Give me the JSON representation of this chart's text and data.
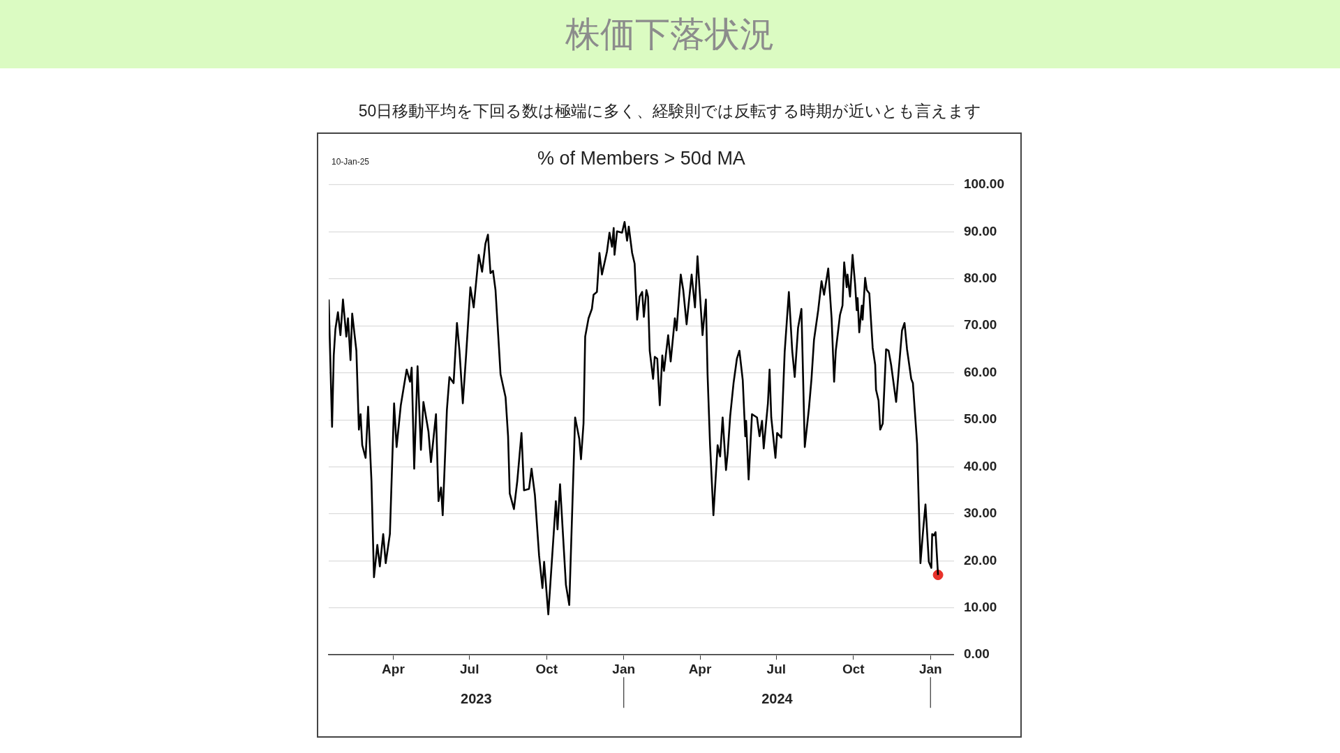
{
  "chart_data": {
    "type": "line",
    "title": "株価下落状況",
    "subtitle": "50日移動平均を下回る数は極端に多く、経験則では反転する時期が近いとも言えます",
    "annotations": [
      "% of Members > 50d MA",
      "10-Jan-25",
      "2023",
      "2024"
    ],
    "xlim": [
      "2023-01-14",
      "2025-01-29"
    ],
    "xticks": [
      {
        "value": "2023-04-01",
        "label": "Apr"
      },
      {
        "value": "2023-07-01",
        "label": "Jul"
      },
      {
        "value": "2023-10-01",
        "label": "Oct"
      },
      {
        "value": "2024-01-01",
        "label": "Jan"
      },
      {
        "value": "2024-04-01",
        "label": "Apr"
      },
      {
        "value": "2024-07-01",
        "label": "Jul"
      },
      {
        "value": "2024-10-01",
        "label": "Oct"
      },
      {
        "value": "2025-01-01",
        "label": "Jan"
      }
    ],
    "ylim": [
      0,
      100
    ],
    "yticks": [
      {
        "value": 0,
        "label": "0.00"
      },
      {
        "value": 10,
        "label": "10.00"
      },
      {
        "value": 20,
        "label": "20.00"
      },
      {
        "value": 30,
        "label": "30.00"
      },
      {
        "value": 40,
        "label": "40.00"
      },
      {
        "value": 50,
        "label": "50.00"
      },
      {
        "value": 60,
        "label": "60.00"
      },
      {
        "value": 70,
        "label": "70.00"
      },
      {
        "value": 80,
        "label": "80.00"
      },
      {
        "value": 90,
        "label": "90.00"
      },
      {
        "value": 100,
        "label": "100.00"
      }
    ],
    "grid": "y",
    "series": [
      {
        "color": "#000000",
        "x": [
          "2023-01-14",
          "2023-01-18",
          "2023-01-20",
          "2023-01-22",
          "2023-01-25",
          "2023-01-28",
          "2023-01-31",
          "2023-02-04",
          "2023-02-06",
          "2023-02-09",
          "2023-02-11",
          "2023-02-16",
          "2023-02-19",
          "2023-02-21",
          "2023-02-23",
          "2023-02-27",
          "2023-03-02",
          "2023-03-06",
          "2023-03-09",
          "2023-03-13",
          "2023-03-16",
          "2023-03-20",
          "2023-03-23",
          "2023-03-28",
          "2023-04-02",
          "2023-04-05",
          "2023-04-10",
          "2023-04-17",
          "2023-04-21",
          "2023-04-23",
          "2023-04-26",
          "2023-04-30",
          "2023-05-04",
          "2023-05-07",
          "2023-05-13",
          "2023-05-16",
          "2023-05-22",
          "2023-05-25",
          "2023-05-28",
          "2023-05-30",
          "2023-06-04",
          "2023-06-07",
          "2023-06-12",
          "2023-06-16",
          "2023-06-19",
          "2023-06-23",
          "2023-06-27",
          "2023-07-02",
          "2023-07-06",
          "2023-07-12",
          "2023-07-16",
          "2023-07-20",
          "2023-07-23",
          "2023-07-26",
          "2023-07-29",
          "2023-08-01",
          "2023-08-05",
          "2023-08-07",
          "2023-08-13",
          "2023-08-16",
          "2023-08-18",
          "2023-08-23",
          "2023-08-27",
          "2023-09-01",
          "2023-09-04",
          "2023-09-10",
          "2023-09-13",
          "2023-09-17",
          "2023-09-22",
          "2023-09-26",
          "2023-09-28",
          "2023-10-03",
          "2023-10-12",
          "2023-10-14",
          "2023-10-17",
          "2023-10-24",
          "2023-10-28",
          "2023-11-04",
          "2023-11-09",
          "2023-11-11",
          "2023-11-14",
          "2023-11-16",
          "2023-11-20",
          "2023-11-24",
          "2023-11-26",
          "2023-11-30",
          "2023-12-03",
          "2023-12-06",
          "2023-12-12",
          "2023-12-15",
          "2023-12-18",
          "2023-12-20",
          "2023-12-21",
          "2023-12-24",
          "2023-12-30",
          "2024-01-02",
          "2024-01-05",
          "2024-01-07",
          "2024-01-11",
          "2024-01-14",
          "2024-01-17",
          "2024-01-20",
          "2024-01-23",
          "2024-01-25",
          "2024-01-28",
          "2024-01-30",
          "2024-02-01",
          "2024-02-05",
          "2024-02-07",
          "2024-02-10",
          "2024-02-13",
          "2024-02-16",
          "2024-02-18",
          "2024-02-23",
          "2024-02-26",
          "2024-03-02",
          "2024-03-04",
          "2024-03-09",
          "2024-03-12",
          "2024-03-16",
          "2024-03-22",
          "2024-03-26",
          "2024-03-29",
          "2024-04-04",
          "2024-04-08",
          "2024-04-10",
          "2024-04-13",
          "2024-04-17",
          "2024-04-22",
          "2024-04-25",
          "2024-04-28",
          "2024-05-02",
          "2024-05-04",
          "2024-05-07",
          "2024-05-11",
          "2024-05-15",
          "2024-05-18",
          "2024-05-22",
          "2024-05-25",
          "2024-05-26",
          "2024-05-29",
          "2024-06-02",
          "2024-06-08",
          "2024-06-11",
          "2024-06-14",
          "2024-06-16",
          "2024-06-21",
          "2024-06-23",
          "2024-06-25",
          "2024-06-30",
          "2024-07-02",
          "2024-07-07",
          "2024-07-11",
          "2024-07-16",
          "2024-07-20",
          "2024-07-23",
          "2024-07-27",
          "2024-07-31",
          "2024-08-04",
          "2024-08-09",
          "2024-08-12",
          "2024-08-15",
          "2024-08-20",
          "2024-08-24",
          "2024-08-27",
          "2024-09-01",
          "2024-09-05",
          "2024-09-08",
          "2024-09-10",
          "2024-09-15",
          "2024-09-18",
          "2024-09-20",
          "2024-09-23",
          "2024-09-24",
          "2024-09-27",
          "2024-09-30",
          "2024-10-03",
          "2024-10-05",
          "2024-10-06",
          "2024-10-08",
          "2024-10-11",
          "2024-10-12",
          "2024-10-15",
          "2024-10-17",
          "2024-10-20",
          "2024-10-24",
          "2024-10-27",
          "2024-10-28",
          "2024-10-31",
          "2024-11-02",
          "2024-11-05",
          "2024-11-09",
          "2024-11-12",
          "2024-11-15",
          "2024-11-19",
          "2024-11-21",
          "2024-11-28",
          "2024-12-01",
          "2024-12-04",
          "2024-12-09",
          "2024-12-11",
          "2024-12-16",
          "2024-12-20",
          "2024-12-23",
          "2024-12-26",
          "2024-12-30",
          "2025-01-02",
          "2025-01-03",
          "2025-01-05",
          "2025-01-07",
          "2025-01-10"
        ],
        "values": [
          75.6,
          48.5,
          63.7,
          69.3,
          72.9,
          68,
          75.6,
          67.7,
          71.6,
          62.7,
          72.6,
          64.7,
          47.9,
          51.2,
          44.6,
          41.9,
          52.8,
          37,
          16.5,
          23.4,
          18.8,
          25.7,
          19.5,
          25.7,
          53.5,
          44.2,
          53.1,
          60.7,
          58.1,
          61.1,
          39.6,
          61.4,
          43.6,
          53.8,
          47.5,
          41,
          51.2,
          32.7,
          35.6,
          29.7,
          52.1,
          59.1,
          57.8,
          70.6,
          64.7,
          53.5,
          64,
          78.2,
          73.9,
          85.1,
          81.5,
          87.5,
          89.4,
          81.2,
          81.7,
          77.6,
          65.7,
          59.7,
          54.8,
          46.5,
          34.3,
          31,
          37,
          47.2,
          35,
          35.3,
          39.6,
          34,
          21.1,
          14.2,
          19.8,
          8.6,
          32.7,
          26.7,
          36.3,
          14.9,
          10.6,
          50.5,
          45.9,
          41.6,
          49.2,
          67.7,
          71.6,
          73.6,
          76.6,
          77.2,
          85.5,
          80.9,
          85.8,
          89.8,
          86.8,
          90.8,
          85.1,
          90.1,
          89.8,
          92.1,
          88.1,
          91.1,
          85.5,
          83.2,
          71.3,
          76.2,
          77.2,
          71.9,
          77.6,
          76.2,
          64.7,
          58.7,
          63.4,
          63,
          53.1,
          63.7,
          60.4,
          68,
          62.4,
          71.6,
          69,
          80.9,
          77.6,
          70.3,
          80.9,
          73.9,
          84.8,
          68,
          75.6,
          59.7,
          44.6,
          29.7,
          44.6,
          42.2,
          50.5,
          39.3,
          42.9,
          50.8,
          57.8,
          63,
          64.7,
          58.4,
          46.5,
          49.8,
          37.3,
          51.2,
          50.5,
          46.5,
          49.8,
          43.9,
          53.5,
          60.7,
          50.5,
          41.9,
          47.2,
          46.2,
          64.4,
          77.2,
          64.7,
          59.1,
          69.6,
          73.6,
          44.2,
          52.5,
          58.7,
          67,
          73.3,
          79.5,
          76.6,
          82.2,
          71.6,
          58.1,
          64.7,
          72.3,
          74.3,
          83.5,
          78.2,
          80.9,
          76.2,
          85.1,
          78.9,
          73.3,
          75.9,
          68.6,
          74.3,
          71.3,
          80.2,
          77.6,
          76.9,
          65.3,
          61.7,
          56.4,
          54.1,
          47.9,
          49.2,
          65,
          64.7,
          61.7,
          56.4,
          53.8,
          69,
          70.6,
          65,
          58.7,
          57.8,
          44.9,
          19.5,
          26.1,
          32,
          19.8,
          18.5,
          25.7,
          25.4,
          26.1,
          17
        ]
      },
      {
        "type": "scatter",
        "color": "#e8312a",
        "marker": "circle",
        "x": [
          "2025-01-10"
        ],
        "values": [
          17
        ]
      }
    ]
  }
}
